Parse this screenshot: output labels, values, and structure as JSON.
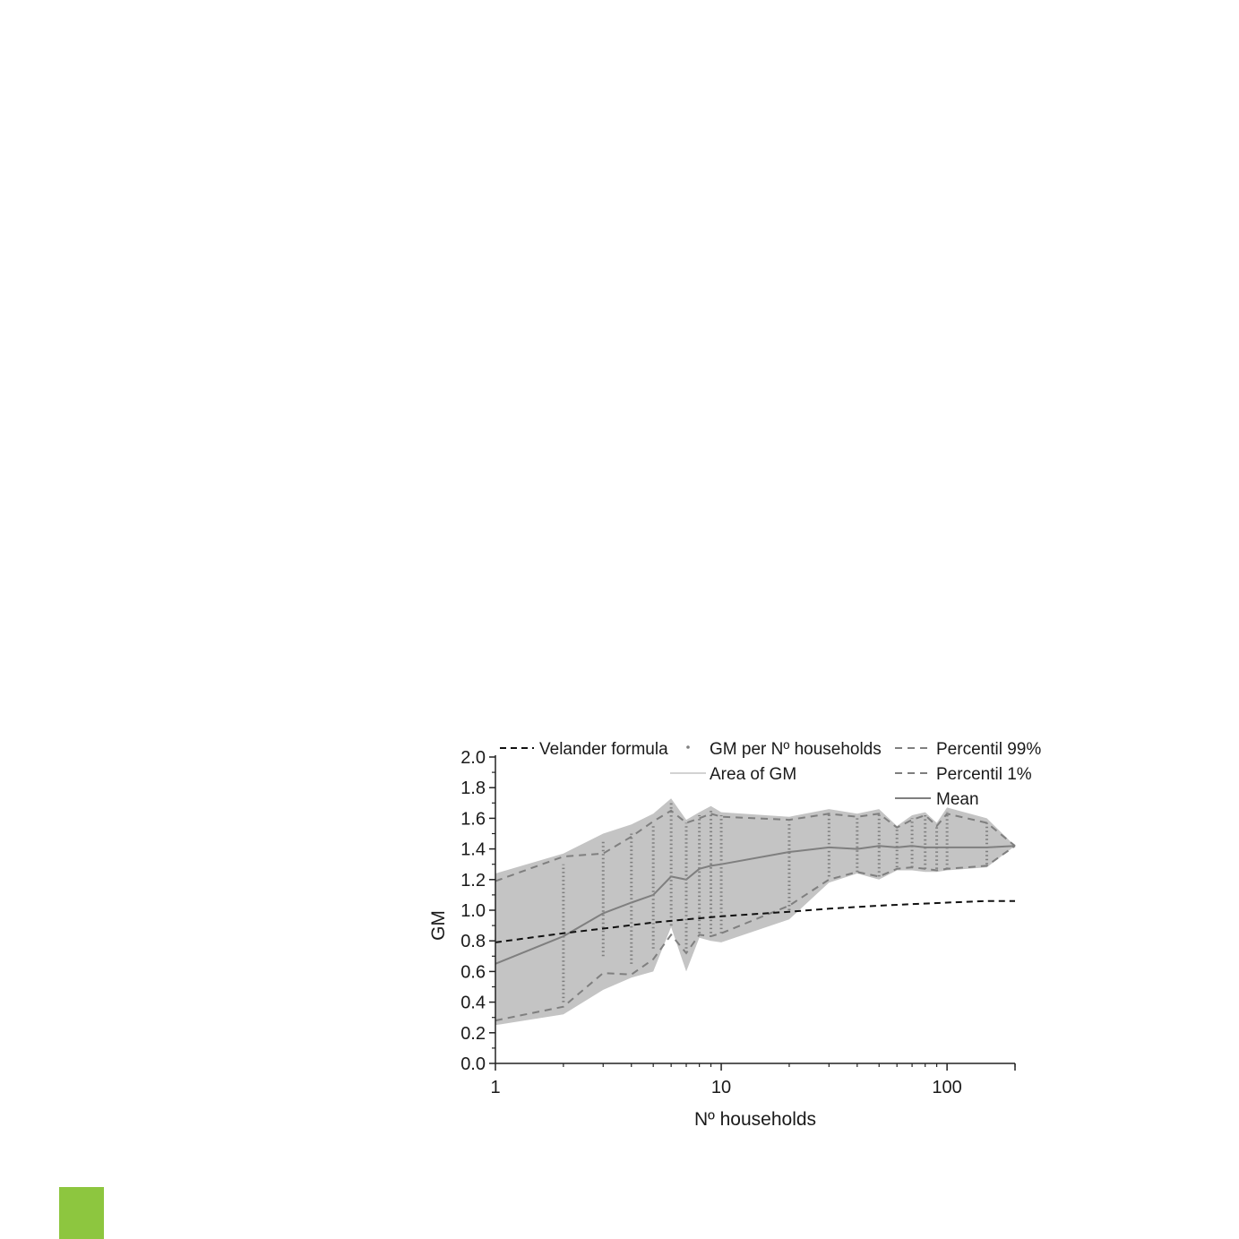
{
  "colors": {
    "area": "#c4c4c4",
    "series": "#7f7f7f",
    "velander": "#111111",
    "axis": "#222222",
    "accent_square": "#8dc63f"
  },
  "chart_data": {
    "type": "area",
    "xlabel": "Nº households",
    "ylabel": "GM",
    "xscale": "log",
    "xlim": [
      1,
      200
    ],
    "ylim": [
      0.0,
      2.0
    ],
    "xticks": [
      1,
      10,
      100
    ],
    "xtick_labels": [
      "1",
      "10",
      "100"
    ],
    "yticks": [
      0.0,
      0.2,
      0.4,
      0.6,
      0.8,
      1.0,
      1.2,
      1.4,
      1.6,
      1.8,
      2.0
    ],
    "ytick_labels": [
      "0.0",
      "0.2",
      "0.4",
      "0.6",
      "0.8",
      "1.0",
      "1.2",
      "1.4",
      "1.6",
      "1.8",
      "2.0"
    ],
    "grid": false,
    "legend": {
      "placement": "top",
      "entries": [
        {
          "label": "Velander formula",
          "style": "dashed-black"
        },
        {
          "label": "GM per Nº households",
          "style": "dot"
        },
        {
          "label": "Percentil 99%",
          "style": "dashed-gray"
        },
        {
          "label": "Area of GM",
          "style": "thin-gray"
        },
        {
          "label": "Percentil 1%",
          "style": "dashed-gray"
        },
        {
          "label": "Mean",
          "style": "solid-gray"
        }
      ]
    },
    "series": [
      {
        "name": "Area of GM",
        "kind": "band",
        "x": [
          1,
          2,
          3,
          4,
          5,
          6,
          7,
          8,
          9,
          10,
          20,
          30,
          40,
          50,
          60,
          70,
          80,
          90,
          100,
          150,
          200
        ],
        "upper": [
          1.24,
          1.37,
          1.5,
          1.56,
          1.63,
          1.73,
          1.59,
          1.64,
          1.68,
          1.64,
          1.61,
          1.66,
          1.63,
          1.66,
          1.55,
          1.62,
          1.64,
          1.57,
          1.67,
          1.6,
          1.42
        ],
        "lower": [
          0.25,
          0.32,
          0.48,
          0.56,
          0.6,
          0.89,
          0.6,
          0.82,
          0.8,
          0.79,
          0.94,
          1.18,
          1.24,
          1.2,
          1.26,
          1.26,
          1.25,
          1.25,
          1.26,
          1.28,
          1.42
        ]
      },
      {
        "name": "Percentil 99%",
        "kind": "dashed",
        "x": [
          1,
          2,
          3,
          4,
          5,
          6,
          7,
          8,
          9,
          10,
          20,
          30,
          40,
          50,
          60,
          70,
          80,
          90,
          100,
          150,
          200
        ],
        "y": [
          1.19,
          1.35,
          1.37,
          1.48,
          1.58,
          1.65,
          1.57,
          1.6,
          1.63,
          1.61,
          1.59,
          1.63,
          1.61,
          1.63,
          1.54,
          1.59,
          1.62,
          1.55,
          1.63,
          1.57,
          1.42
        ]
      },
      {
        "name": "Percentil 1%",
        "kind": "dashed",
        "x": [
          1,
          2,
          3,
          4,
          5,
          6,
          7,
          8,
          9,
          10,
          20,
          30,
          40,
          50,
          60,
          70,
          80,
          90,
          100,
          150,
          200
        ],
        "y": [
          0.28,
          0.37,
          0.59,
          0.58,
          0.68,
          0.84,
          0.72,
          0.84,
          0.83,
          0.85,
          1.03,
          1.2,
          1.25,
          1.22,
          1.27,
          1.28,
          1.27,
          1.26,
          1.27,
          1.29,
          1.42
        ]
      },
      {
        "name": "Mean",
        "kind": "solid",
        "x": [
          1,
          2,
          3,
          4,
          5,
          6,
          7,
          8,
          9,
          10,
          20,
          30,
          40,
          50,
          60,
          70,
          80,
          90,
          100,
          150,
          200
        ],
        "y": [
          0.65,
          0.83,
          0.98,
          1.05,
          1.1,
          1.22,
          1.2,
          1.27,
          1.29,
          1.3,
          1.38,
          1.41,
          1.4,
          1.42,
          1.41,
          1.42,
          1.41,
          1.41,
          1.41,
          1.41,
          1.42
        ]
      },
      {
        "name": "Velander formula",
        "kind": "dashed-black",
        "x": [
          1,
          2,
          3,
          5,
          7,
          10,
          20,
          30,
          50,
          70,
          100,
          150,
          200
        ],
        "y": [
          0.79,
          0.85,
          0.88,
          0.92,
          0.94,
          0.96,
          0.99,
          1.01,
          1.03,
          1.04,
          1.05,
          1.06,
          1.06
        ]
      },
      {
        "name": "GM per Nº households",
        "kind": "dots",
        "x": [
          2,
          3,
          4,
          5,
          6,
          7,
          8,
          9,
          10,
          20,
          30,
          40,
          50,
          60,
          70,
          80,
          90,
          100,
          150
        ],
        "ymin": [
          0.4,
          0.7,
          0.65,
          0.75,
          0.9,
          0.75,
          0.85,
          0.85,
          0.85,
          1.0,
          1.22,
          1.25,
          1.22,
          1.28,
          1.28,
          1.27,
          1.27,
          1.27,
          1.3
        ],
        "ymax": [
          1.3,
          1.45,
          1.5,
          1.56,
          1.7,
          1.57,
          1.62,
          1.66,
          1.62,
          1.58,
          1.63,
          1.6,
          1.64,
          1.53,
          1.6,
          1.62,
          1.56,
          1.64,
          1.57
        ]
      }
    ]
  }
}
